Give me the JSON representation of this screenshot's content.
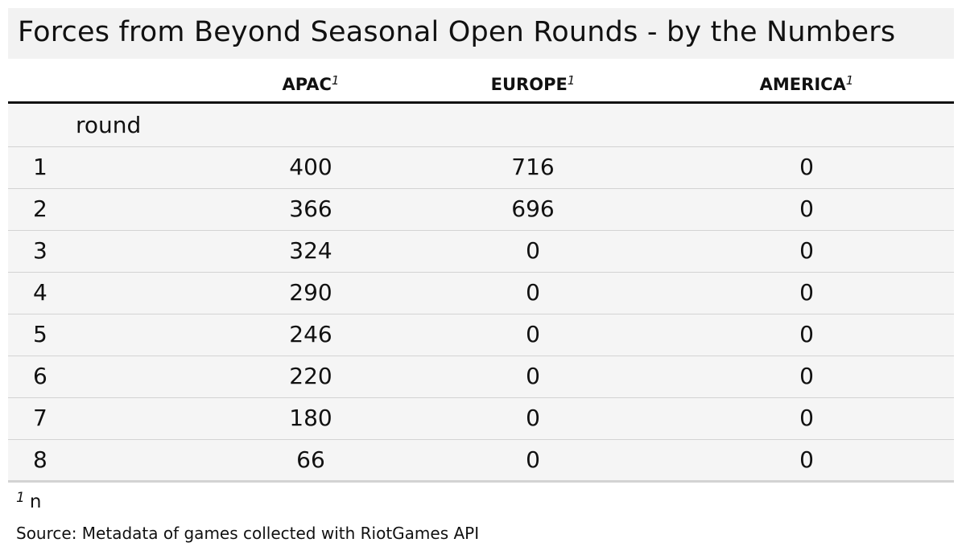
{
  "chart_data": {
    "type": "table",
    "title": "Forces from Beyond Seasonal Open Rounds - by the Numbers",
    "group_label": "round",
    "columns": [
      {
        "label": "APAC",
        "footnote_mark": "1"
      },
      {
        "label": "EUROPE",
        "footnote_mark": "1"
      },
      {
        "label": "AMERICA",
        "footnote_mark": "1"
      }
    ],
    "rows": [
      {
        "round": "1",
        "values": [
          "400",
          "716",
          "0"
        ]
      },
      {
        "round": "2",
        "values": [
          "366",
          "696",
          "0"
        ]
      },
      {
        "round": "3",
        "values": [
          "324",
          "0",
          "0"
        ]
      },
      {
        "round": "4",
        "values": [
          "290",
          "0",
          "0"
        ]
      },
      {
        "round": "5",
        "values": [
          "246",
          "0",
          "0"
        ]
      },
      {
        "round": "6",
        "values": [
          "220",
          "0",
          "0"
        ]
      },
      {
        "round": "7",
        "values": [
          "180",
          "0",
          "0"
        ]
      },
      {
        "round": "8",
        "values": [
          "66",
          "0",
          "0"
        ]
      }
    ],
    "footnote": {
      "mark": "1",
      "text": "n"
    },
    "source": "Source: Metadata of games collected with RiotGames API"
  }
}
